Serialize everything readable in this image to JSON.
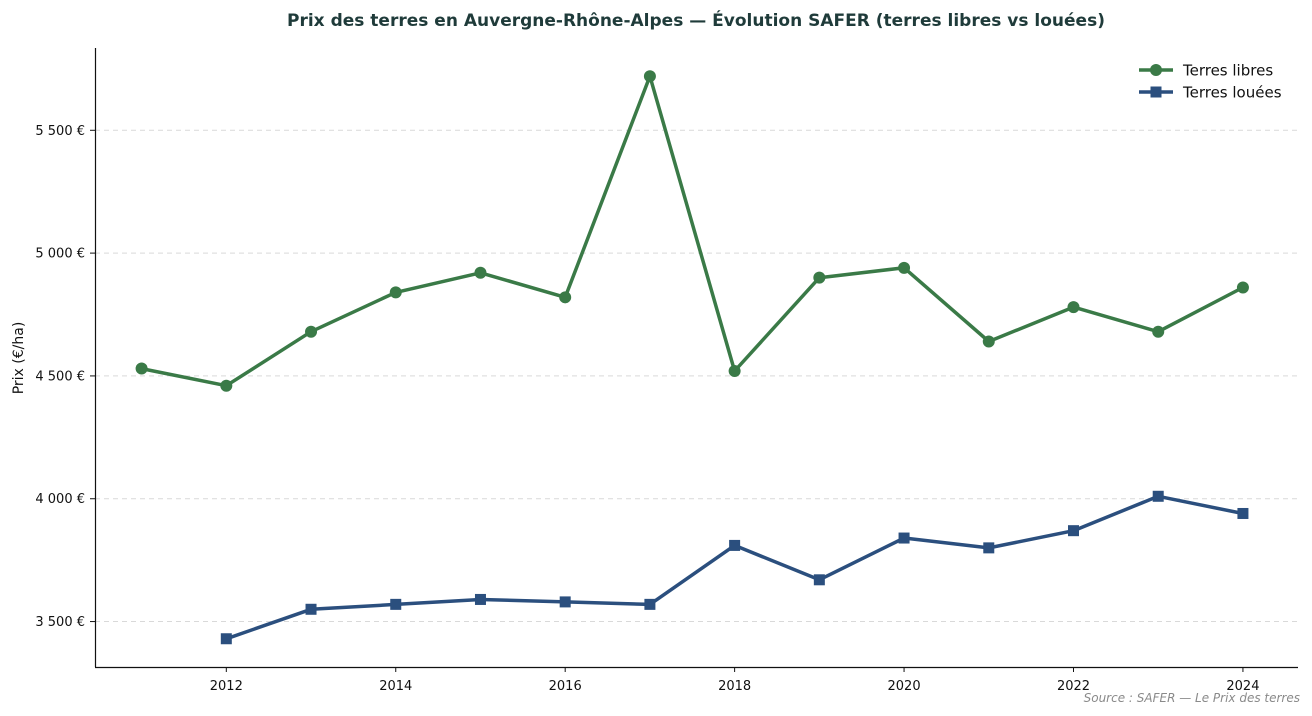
{
  "chart_data": {
    "type": "line",
    "title": "Prix des terres en Auvergne-Rhône-Alpes — Évolution SAFER (terres libres vs louées)",
    "xlabel": "",
    "ylabel": "Prix (€/ha)",
    "x_ticks": [
      "2012",
      "2014",
      "2016",
      "2018",
      "2020",
      "2022",
      "2024"
    ],
    "y_ticks": [
      {
        "value": 3500,
        "label": "3 500 €"
      },
      {
        "value": 4000,
        "label": "4 000 €"
      },
      {
        "value": 4500,
        "label": "4 500 €"
      },
      {
        "value": 5000,
        "label": "5 000 €"
      },
      {
        "value": 5500,
        "label": "5 500 €"
      }
    ],
    "xlim": [
      2010.45,
      2024.65
    ],
    "ylim": [
      3315,
      5835
    ],
    "grid": "horizontal dashed",
    "legend_position": "top-right",
    "series": [
      {
        "name": "Terres libres",
        "color": "#3a7a47",
        "marker": "circle",
        "x": [
          2011,
          2012,
          2013,
          2014,
          2015,
          2016,
          2017,
          2018,
          2019,
          2020,
          2021,
          2022,
          2023,
          2024
        ],
        "values": [
          4530,
          4460,
          4680,
          4840,
          4920,
          4820,
          5720,
          4520,
          4900,
          4940,
          4640,
          4780,
          4680,
          4860
        ]
      },
      {
        "name": "Terres louées",
        "color": "#2b4f7e",
        "marker": "square",
        "x": [
          2012,
          2013,
          2014,
          2015,
          2016,
          2017,
          2018,
          2019,
          2020,
          2021,
          2022,
          2023,
          2024
        ],
        "values": [
          3430,
          3550,
          3570,
          3590,
          3580,
          3570,
          3810,
          3670,
          3840,
          3800,
          3870,
          4010,
          3940
        ]
      }
    ],
    "source": "Source : SAFER — Le Prix des terres"
  }
}
